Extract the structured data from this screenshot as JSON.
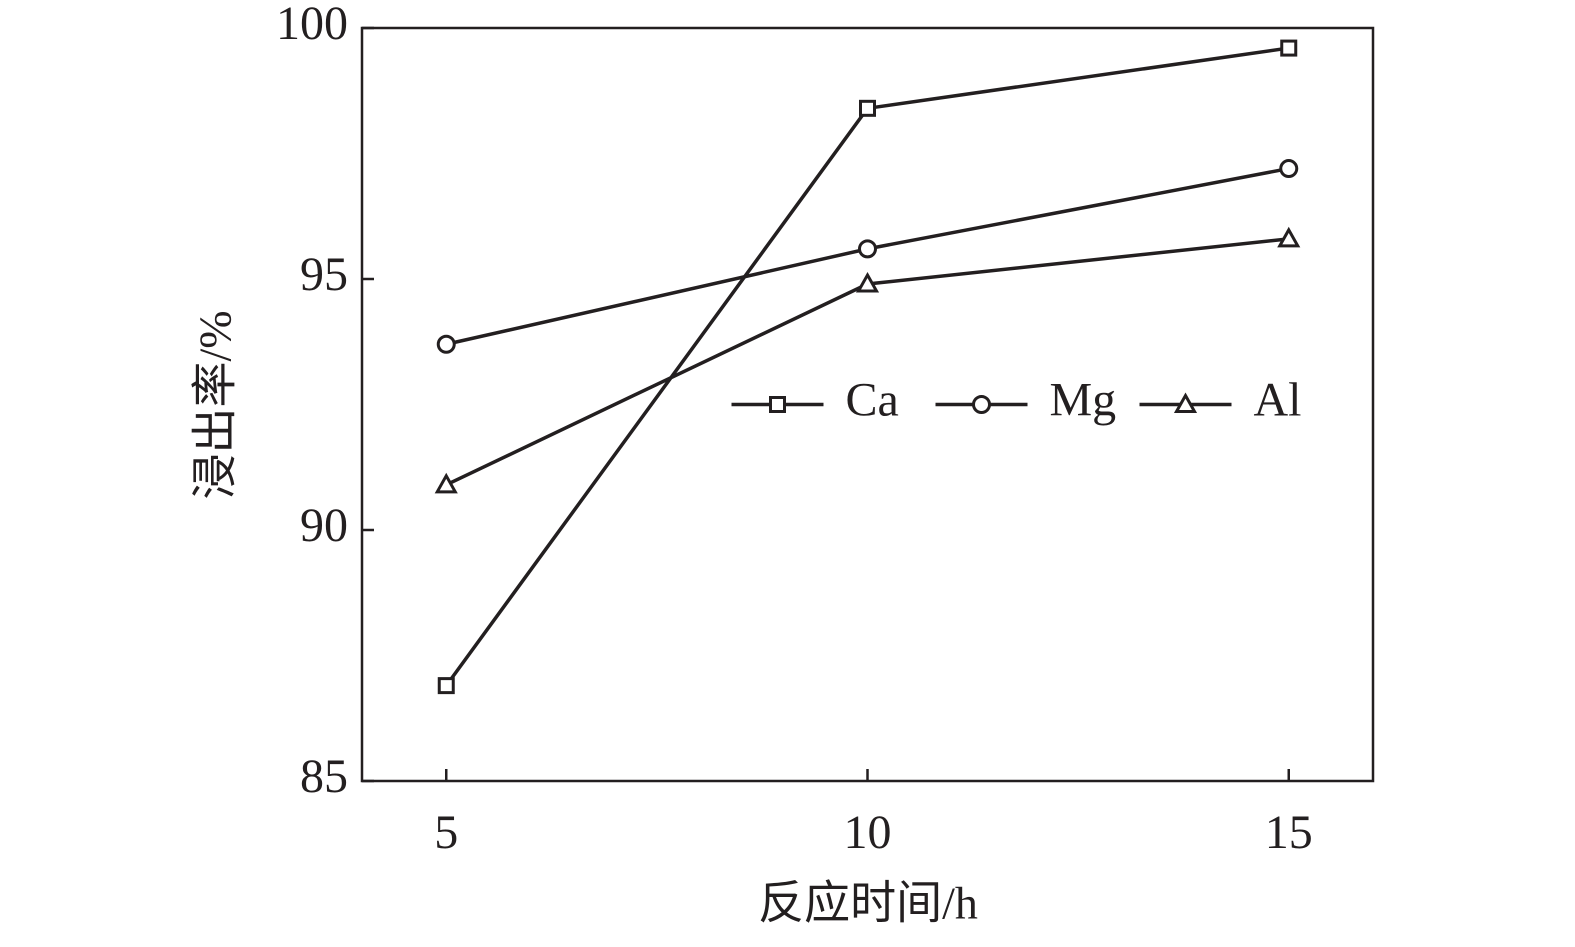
{
  "chart_data": {
    "type": "line",
    "x_label": "反应时间/h",
    "y_label": "浸出率/%",
    "x": [
      5,
      10,
      15
    ],
    "series": [
      {
        "name": "Ca",
        "color": "#231f20",
        "marker": "square",
        "values": [
          86.9,
          98.4,
          99.6
        ]
      },
      {
        "name": "Mg",
        "color": "#231f20",
        "marker": "circle",
        "values": [
          93.7,
          95.6,
          97.2
        ]
      },
      {
        "name": "Al",
        "color": "#231f20",
        "marker": "triangle",
        "values": [
          90.9,
          94.9,
          95.8
        ]
      }
    ],
    "xlim": [
      4,
      16
    ],
    "xticks": [
      5,
      10,
      15
    ],
    "ylim": [
      85,
      100
    ],
    "yticks": [
      85,
      90,
      95,
      100
    ],
    "grid": false,
    "legend": "center"
  }
}
